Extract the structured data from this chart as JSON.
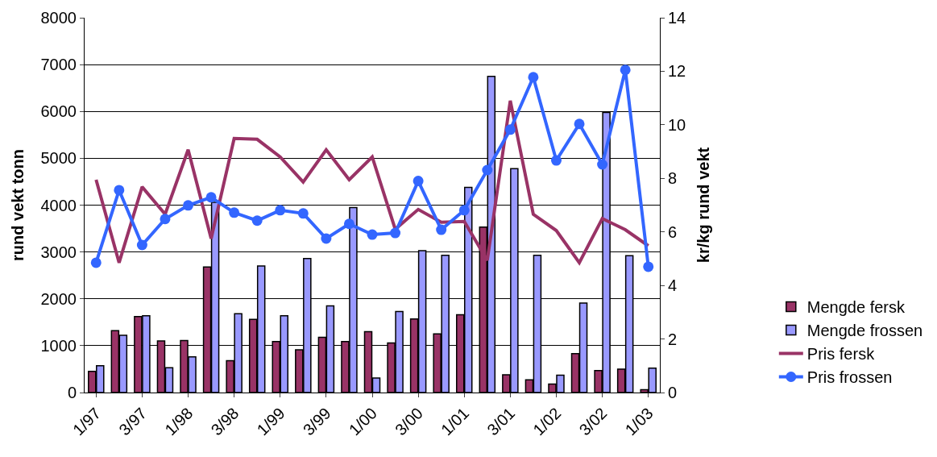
{
  "chart_data": {
    "type": "bar",
    "ylabel": "rund vekt tonn",
    "y2label": "kr/kg rund vekt",
    "categories": [
      "1/97",
      null,
      "3/97",
      null,
      "1/98",
      null,
      "3/98",
      null,
      "1/99",
      null,
      "3/99",
      null,
      "1/00",
      null,
      "3/00",
      null,
      "1/01",
      null,
      "3/01",
      null,
      "1/02",
      null,
      "3/02",
      null,
      "1/03"
    ],
    "series": [
      {
        "name": "Mengde fersk",
        "color": "#993366",
        "values": [
          450,
          1320,
          1620,
          1100,
          1110,
          2680,
          680,
          1560,
          1090,
          910,
          1180,
          1090,
          1300,
          1060,
          1570,
          1250,
          1660,
          3530,
          380,
          270,
          180,
          830,
          470,
          500,
          60
        ]
      },
      {
        "name": "Mengde frossen",
        "color": "#9999ff",
        "values": [
          570,
          1220,
          1640,
          530,
          760,
          4060,
          1680,
          2700,
          1640,
          2860,
          1850,
          3950,
          310,
          1730,
          3030,
          2930,
          4380,
          6750,
          4780,
          2930,
          370,
          1910,
          5980,
          2920,
          520
        ]
      },
      {
        "name": "Pris fersk",
        "type": "line",
        "axis": "y2",
        "color": "#993366",
        "marker": "none",
        "values": [
          7.95,
          4.85,
          7.68,
          6.66,
          9.07,
          5.75,
          9.49,
          9.46,
          8.8,
          7.86,
          9.07,
          7.95,
          8.8,
          6.1,
          6.84,
          6.36,
          6.39,
          4.94,
          10.9,
          6.66,
          6.05,
          4.85,
          6.5,
          6.08,
          5.48
        ]
      },
      {
        "name": "Pris frossen",
        "type": "line",
        "axis": "y2",
        "color": "#3366ff",
        "marker": "circle",
        "values": [
          4.85,
          7.56,
          5.51,
          6.48,
          6.99,
          7.29,
          6.72,
          6.42,
          6.81,
          6.69,
          5.75,
          6.3,
          5.9,
          5.96,
          7.9,
          6.08,
          6.81,
          8.31,
          9.82,
          11.78,
          8.67,
          10.03,
          8.52,
          12.05,
          4.7
        ]
      }
    ],
    "ylim": [
      0,
      8000
    ],
    "yticks": [
      0,
      1000,
      2000,
      3000,
      4000,
      5000,
      6000,
      7000,
      8000
    ],
    "y2lim": [
      0,
      14
    ],
    "y2ticks": [
      0,
      2,
      4,
      6,
      8,
      10,
      12,
      14
    ],
    "grid": "y",
    "legend": "bottom right"
  }
}
